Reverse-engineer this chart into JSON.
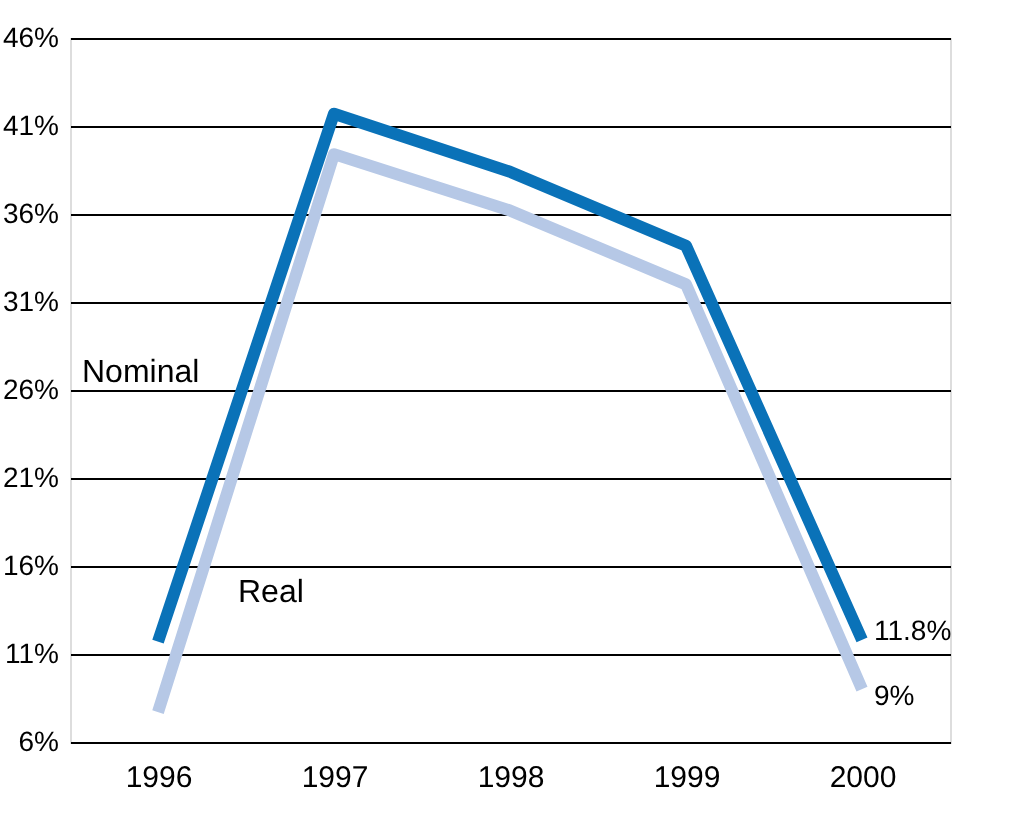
{
  "chart_data": {
    "type": "line",
    "categories": [
      "1996",
      "1997",
      "1998",
      "1999",
      "2000"
    ],
    "series": [
      {
        "name": "Nominal",
        "color": "#0a72b8",
        "values": [
          11.7,
          41.7,
          38.4,
          34.2,
          11.8
        ],
        "value_labels": [
          null,
          null,
          null,
          null,
          "11.8%"
        ]
      },
      {
        "name": "Real",
        "color": "#b6c8e6",
        "values": [
          7.7,
          39.4,
          36.2,
          32.0,
          9
        ],
        "value_labels": [
          null,
          null,
          null,
          null,
          "9%"
        ]
      }
    ],
    "ylim": [
      6,
      46
    ],
    "yticks": [
      {
        "value": 6,
        "label": "6%"
      },
      {
        "value": 11,
        "label": "11%"
      },
      {
        "value": 16,
        "label": "16%"
      },
      {
        "value": 21,
        "label": "21%"
      },
      {
        "value": 26,
        "label": "26%"
      },
      {
        "value": 31,
        "label": "31%"
      },
      {
        "value": 36,
        "label": "36%"
      },
      {
        "value": 41,
        "label": "41%"
      },
      {
        "value": 46,
        "label": "46%"
      }
    ],
    "grid": "y",
    "marker": "none",
    "line_style": "solid"
  }
}
